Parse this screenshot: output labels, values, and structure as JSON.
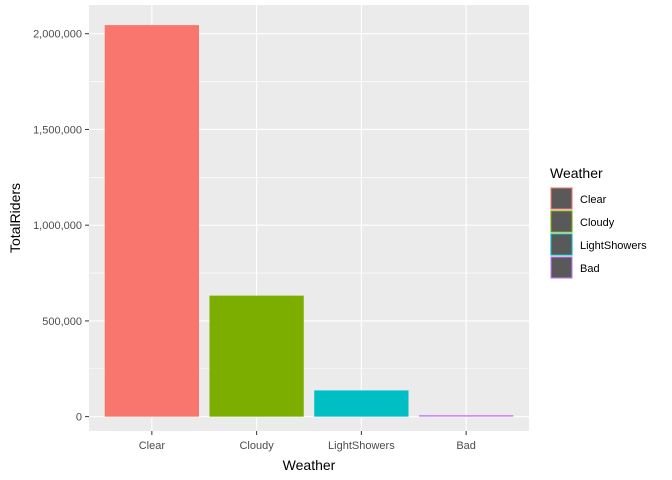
{
  "chart_data": {
    "type": "bar",
    "categories": [
      "Clear",
      "Cloudy",
      "LightShowers",
      "Bad"
    ],
    "values": [
      2045000,
      632000,
      137000,
      3000
    ],
    "colors": [
      "#F8766D",
      "#7CAE00",
      "#00BFC4",
      "#C77CFF"
    ],
    "xlabel": "Weather",
    "ylabel": "TotalRiders",
    "ylim": [
      -75000,
      2150000
    ],
    "yticks": [
      0,
      500000,
      1000000,
      1500000,
      2000000
    ],
    "ytick_labels": [
      "0",
      "500,000",
      "1,000,000",
      "1,500,000",
      "2,000,000"
    ],
    "grid": true,
    "background": "#EBEBEB",
    "gridline_color": "#FFFFFF",
    "legend": {
      "title": "Weather",
      "placement": "right",
      "entries": [
        "Clear",
        "Cloudy",
        "LightShowers",
        "Bad"
      ]
    }
  }
}
